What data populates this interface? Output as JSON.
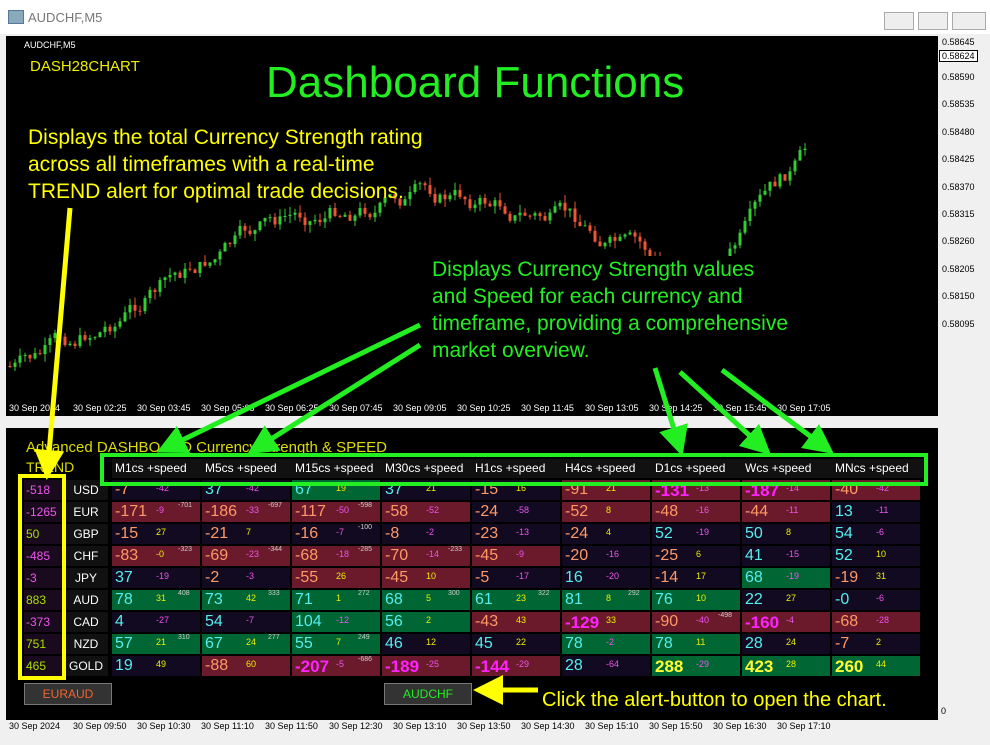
{
  "window": {
    "title": "AUDCHF,M5"
  },
  "chart": {
    "symbol": "AUDCHF,M5",
    "label": "DASH28CHART",
    "heading": "Dashboard Functions",
    "price_ticks": [
      "0.58645",
      "0.58590",
      "0.58535",
      "0.58480",
      "0.58425",
      "0.58370",
      "0.58315",
      "0.58260",
      "0.58205",
      "0.58150",
      "0.58095"
    ],
    "current_price": "0.58624",
    "time_labels": [
      "30 Sep 2024",
      "30 Sep 02:25",
      "30 Sep 03:45",
      "30 Sep 05:05",
      "30 Sep 06:25",
      "30 Sep 07:45",
      "30 Sep 09:05",
      "30 Sep 10:25",
      "30 Sep 11:45",
      "30 Sep 13:05",
      "30 Sep 14:25",
      "30 Sep 15:45",
      "30 Sep 17:05"
    ]
  },
  "annotations": [
    [
      "Displays the total Currency Strength rating",
      "across all timeframes with a real-time",
      "TREND alert for optimal trade decisions."
    ],
    [
      "Displays Currency Strength values",
      "and Speed for each currency and",
      "timeframe, providing a comprehensive",
      "market overview."
    ],
    [
      "Click the alert-button to open the chart."
    ]
  ],
  "dashboard": {
    "title": "Advanced  DASHBOARD Currency Strength & SPEED",
    "trend_header": "TREND",
    "columns": [
      "M1cs +speed",
      "M5cs +speed",
      "M15cs +speed",
      "M30cs +speed",
      "H1cs +speed",
      "H4cs +speed",
      "D1cs +speed",
      "Wcs +speed",
      "MNcs +speed"
    ],
    "rows": [
      {
        "trend": "-518",
        "currency": "USD",
        "cells": [
          [
            "-7",
            "-42"
          ],
          [
            "37",
            "-42"
          ],
          [
            "67",
            "19"
          ],
          [
            "37",
            "21"
          ],
          [
            "-15",
            "16"
          ],
          [
            "-91",
            "21"
          ],
          [
            "-131",
            "-13"
          ],
          [
            "-187",
            "-14"
          ],
          [
            "-40",
            "-42"
          ]
        ]
      },
      {
        "trend": "-1265",
        "currency": "EUR",
        "cells": [
          [
            "-171",
            "-9",
            "-701"
          ],
          [
            "-186",
            "-33",
            "-697"
          ],
          [
            "-117",
            "-50",
            "-598"
          ],
          [
            "-58",
            "-52"
          ],
          [
            "-24",
            "-58"
          ],
          [
            "-52",
            "8"
          ],
          [
            "-48",
            "-16"
          ],
          [
            "-44",
            "-11"
          ],
          [
            "13",
            "-11"
          ]
        ]
      },
      {
        "trend": "50",
        "currency": "GBP",
        "cells": [
          [
            "-15",
            "27"
          ],
          [
            "-21",
            "7"
          ],
          [
            "-16",
            "-7",
            "-100"
          ],
          [
            "-8",
            "-2"
          ],
          [
            "-23",
            "-13"
          ],
          [
            "-24",
            "4"
          ],
          [
            "52",
            "-19"
          ],
          [
            "50",
            "8"
          ],
          [
            "54",
            "-6"
          ]
        ]
      },
      {
        "trend": "-485",
        "currency": "CHF",
        "cells": [
          [
            "-83",
            "-0",
            "-323"
          ],
          [
            "-69",
            "-23",
            "-344"
          ],
          [
            "-68",
            "-18",
            "-285"
          ],
          [
            "-70",
            "-14",
            "-233"
          ],
          [
            "-45",
            "-9"
          ],
          [
            "-20",
            "-16"
          ],
          [
            "-25",
            "6"
          ],
          [
            "41",
            "-15"
          ],
          [
            "52",
            "10"
          ]
        ]
      },
      {
        "trend": "-3",
        "currency": "JPY",
        "cells": [
          [
            "37",
            "-19"
          ],
          [
            "-2",
            "-3"
          ],
          [
            "-55",
            "26"
          ],
          [
            "-45",
            "10"
          ],
          [
            "-5",
            "-17"
          ],
          [
            "16",
            "-20"
          ],
          [
            "-14",
            "17"
          ],
          [
            "68",
            "-19"
          ],
          [
            "-19",
            "31"
          ]
        ]
      },
      {
        "trend": "883",
        "currency": "AUD",
        "cells": [
          [
            "78",
            "31",
            "408"
          ],
          [
            "73",
            "42",
            "333"
          ],
          [
            "71",
            "1",
            "272"
          ],
          [
            "68",
            "5",
            "300"
          ],
          [
            "61",
            "23",
            "322"
          ],
          [
            "81",
            "8",
            "292"
          ],
          [
            "76",
            "10"
          ],
          [
            "22",
            "27"
          ],
          [
            "-0",
            "-6"
          ]
        ]
      },
      {
        "trend": "-373",
        "currency": "CAD",
        "cells": [
          [
            "4",
            "-27"
          ],
          [
            "54",
            "-7"
          ],
          [
            "104",
            "-12"
          ],
          [
            "56",
            "2"
          ],
          [
            "-43",
            "43"
          ],
          [
            "-129",
            "33"
          ],
          [
            "-90",
            "-40",
            "-498"
          ],
          [
            "-160",
            "-4"
          ],
          [
            "-68",
            "-28"
          ]
        ]
      },
      {
        "trend": "751",
        "currency": "NZD",
        "cells": [
          [
            "57",
            "21",
            "310"
          ],
          [
            "67",
            "24",
            "277"
          ],
          [
            "55",
            "7",
            "249"
          ],
          [
            "46",
            "12"
          ],
          [
            "45",
            "22"
          ],
          [
            "78",
            "-2"
          ],
          [
            "78",
            "11"
          ],
          [
            "28",
            "24"
          ],
          [
            "-7",
            "2"
          ]
        ]
      },
      {
        "trend": "465",
        "currency": "GOLD",
        "cells": [
          [
            "19",
            "49"
          ],
          [
            "-88",
            "60"
          ],
          [
            "-207",
            "-5",
            "-686"
          ],
          [
            "-189",
            "-25"
          ],
          [
            "-144",
            "-29"
          ],
          [
            "28",
            "-64"
          ],
          [
            "288",
            "-29"
          ],
          [
            "423",
            "28"
          ],
          [
            "260",
            "44"
          ]
        ]
      }
    ]
  },
  "buttons": [
    "EURAUD",
    "AUDCHF"
  ],
  "lower_axis": {
    "value": "0",
    "time_labels": [
      "30 Sep 2024",
      "30 Sep 09:50",
      "30 Sep 10:30",
      "30 Sep 11:10",
      "30 Sep 11:50",
      "30 Sep 12:30",
      "30 Sep 13:10",
      "30 Sep 13:50",
      "30 Sep 14:30",
      "30 Sep 15:10",
      "30 Sep 15:50",
      "30 Sep 16:30",
      "30 Sep 17:10"
    ]
  }
}
